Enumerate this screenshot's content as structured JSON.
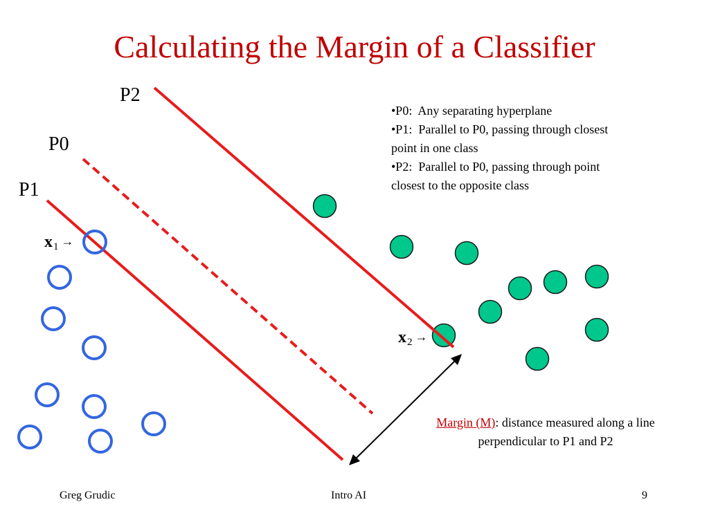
{
  "slide": {
    "title": "Calculating the Margin of a Classifier",
    "line_labels": {
      "p2": "P2",
      "p0": "P0",
      "p1": "P1"
    },
    "point_labels": {
      "x1": {
        "letter": "x",
        "subscript": "1",
        "arrow": "→"
      },
      "x2": {
        "letter": "x",
        "subscript": "2",
        "arrow": "→"
      }
    },
    "legend_lines": [
      "•P0:  Any separating hyperplane",
      "•P1:  Parallel to P0, passing through closest point in one class",
      "•P2:  Parallel to P0, passing through point closest to the opposite class"
    ],
    "margin_note": {
      "term": "Margin (M)",
      "rest": ": distance measured along a line perpendicular to P1 and P2"
    },
    "footer": {
      "left": "Greg Grudic",
      "center": "Intro AI",
      "right": "9"
    }
  },
  "colors": {
    "title": "#c00000",
    "hyperplane": "#e81c1c",
    "class_open": "#3366e0",
    "class_filled_fill": "#00c78c",
    "class_filled_stroke": "#1a1a1a",
    "arrow": "#000000"
  },
  "icons": {
    "point_arrow": "right-arrow-icon",
    "margin_arrow": "double-headed-arrow-icon"
  }
}
